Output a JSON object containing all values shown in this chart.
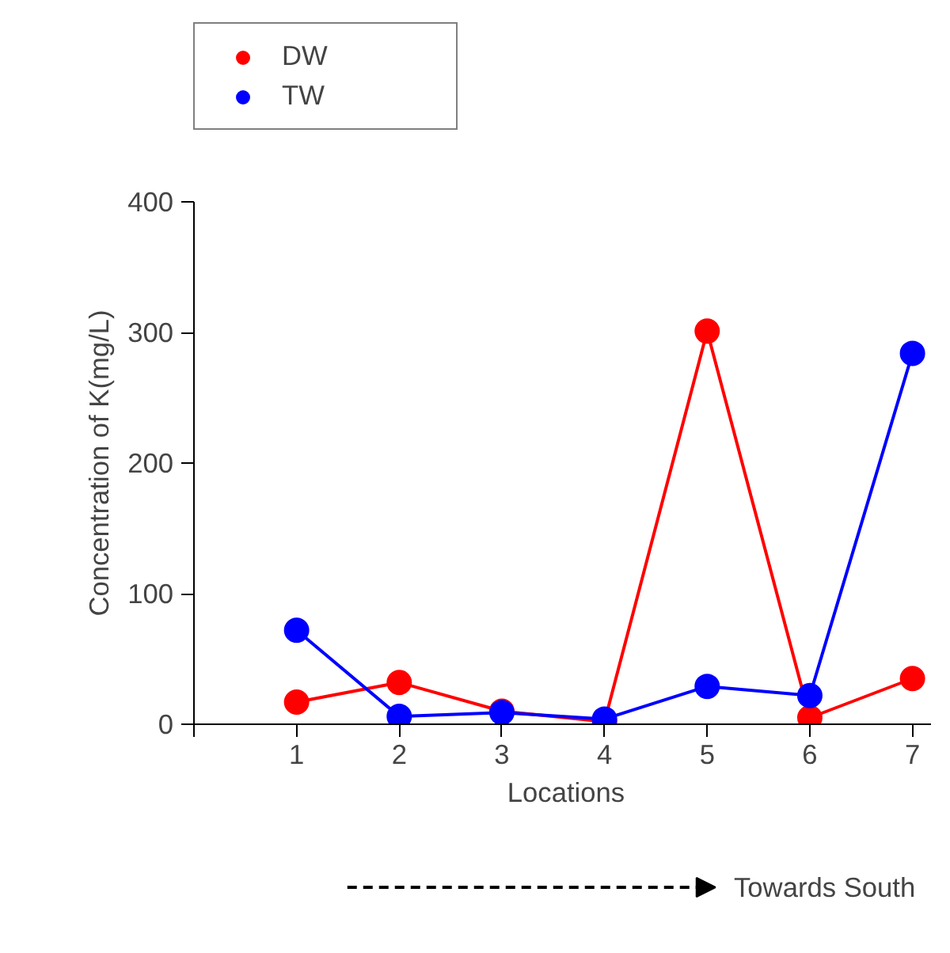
{
  "chart_data": {
    "type": "line",
    "xlabel": "Locations",
    "ylabel": "Concentration of K(mg/L)",
    "x": [
      1,
      2,
      3,
      4,
      5,
      6,
      7
    ],
    "series": [
      {
        "name": "DW",
        "color": "#ff0000",
        "values": [
          17,
          32,
          10,
          2,
          301,
          5,
          35
        ]
      },
      {
        "name": "TW",
        "color": "#0000ff",
        "values": [
          72,
          6,
          9,
          4,
          29,
          22,
          284
        ]
      }
    ],
    "xlim": [
      0,
      7.25
    ],
    "xticks": [
      {
        "value": 0,
        "label": null
      },
      1,
      2,
      3,
      4,
      5,
      6,
      7
    ],
    "ylim": [
      0,
      400
    ],
    "yticks": [
      0,
      100,
      200,
      300,
      400
    ],
    "grid": false,
    "legend": "top left",
    "marker": "circle",
    "line_style": "solid",
    "annotations": [
      "Towards South"
    ]
  }
}
